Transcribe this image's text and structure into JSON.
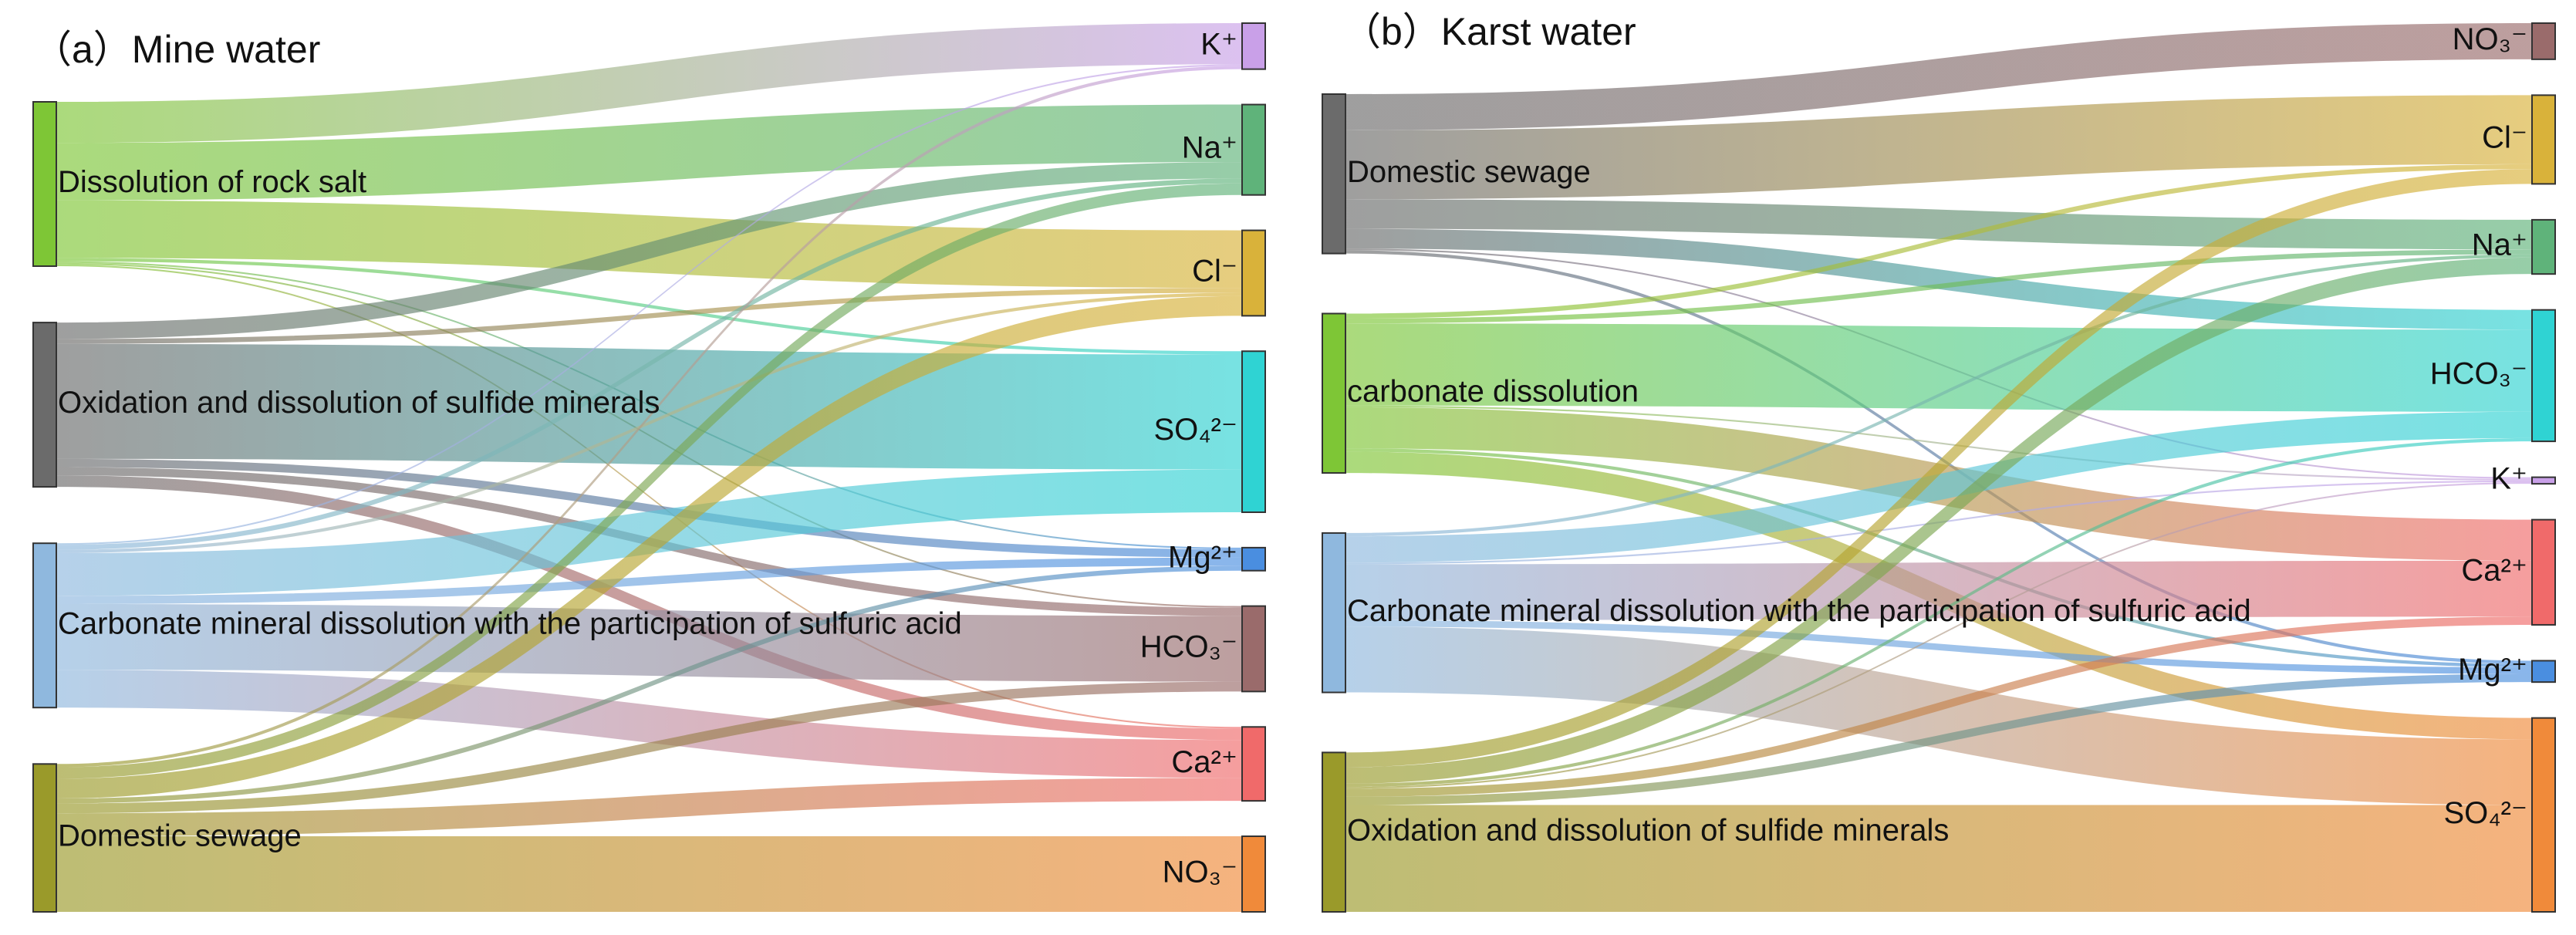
{
  "chart_data": [
    {
      "type": "sankey",
      "title": "（a）Mine water",
      "sources": [
        {
          "name": "Dissolution of rock salt",
          "color": "#7ec636"
        },
        {
          "name": "Oxidation and dissolution of sulfide minerals",
          "color": "#6b6b6b"
        },
        {
          "name": "Carbonate mineral dissolution with the participation of sulfuric acid",
          "color": "#8fb8de"
        },
        {
          "name": "Domestic sewage",
          "color": "#9a9a2a"
        }
      ],
      "targets": [
        {
          "name": "K⁺",
          "color": "#c9a0e8"
        },
        {
          "name": "Na⁺",
          "color": "#5fb37a"
        },
        {
          "name": "Cl⁻",
          "color": "#d9b23a"
        },
        {
          "name": "SO₄²⁻",
          "color": "#2fd3d3"
        },
        {
          "name": "Mg²⁺",
          "color": "#4a8ee0"
        },
        {
          "name": "HCO₃⁻",
          "color": "#9a6b6b"
        },
        {
          "name": "Ca²⁺",
          "color": "#f06a6a"
        },
        {
          "name": "NO₃⁻",
          "color": "#f08a3a"
        }
      ],
      "links": [
        {
          "source": "Dissolution of rock salt",
          "target": "K⁺",
          "value": 25
        },
        {
          "source": "Dissolution of rock salt",
          "target": "Na⁺",
          "value": 35
        },
        {
          "source": "Dissolution of rock salt",
          "target": "Cl⁻",
          "value": 35
        },
        {
          "source": "Dissolution of rock salt",
          "target": "SO₄²⁻",
          "value": 2
        },
        {
          "source": "Dissolution of rock salt",
          "target": "Mg²⁺",
          "value": 1
        },
        {
          "source": "Dissolution of rock salt",
          "target": "HCO₃⁻",
          "value": 1
        },
        {
          "source": "Dissolution of rock salt",
          "target": "Ca²⁺",
          "value": 1
        },
        {
          "source": "Oxidation and dissolution of sulfide minerals",
          "target": "Na⁺",
          "value": 10
        },
        {
          "source": "Oxidation and dissolution of sulfide minerals",
          "target": "Cl⁻",
          "value": 3
        },
        {
          "source": "Oxidation and dissolution of sulfide minerals",
          "target": "SO₄²⁻",
          "value": 70
        },
        {
          "source": "Oxidation and dissolution of sulfide minerals",
          "target": "Mg²⁺",
          "value": 5
        },
        {
          "source": "Oxidation and dissolution of sulfide minerals",
          "target": "HCO₃⁻",
          "value": 5
        },
        {
          "source": "Oxidation and dissolution of sulfide minerals",
          "target": "Ca²⁺",
          "value": 7
        },
        {
          "source": "Carbonate mineral dissolution with the participation of sulfuric acid",
          "target": "K⁺",
          "value": 1
        },
        {
          "source": "Carbonate mineral dissolution with the participation of sulfuric acid",
          "target": "Na⁺",
          "value": 3
        },
        {
          "source": "Carbonate mineral dissolution with the participation of sulfuric acid",
          "target": "Cl⁻",
          "value": 2
        },
        {
          "source": "Carbonate mineral dissolution with the participation of sulfuric acid",
          "target": "SO₄²⁻",
          "value": 26
        },
        {
          "source": "Carbonate mineral dissolution with the participation of sulfuric acid",
          "target": "Mg²⁺",
          "value": 5
        },
        {
          "source": "Carbonate mineral dissolution with the participation of sulfuric acid",
          "target": "HCO₃⁻",
          "value": 40
        },
        {
          "source": "Carbonate mineral dissolution with the participation of sulfuric acid",
          "target": "Ca²⁺",
          "value": 23
        },
        {
          "source": "Domestic sewage",
          "target": "K⁺",
          "value": 2
        },
        {
          "source": "Domestic sewage",
          "target": "Na⁺",
          "value": 7
        },
        {
          "source": "Domestic sewage",
          "target": "Cl⁻",
          "value": 12
        },
        {
          "source": "Domestic sewage",
          "target": "Mg²⁺",
          "value": 3
        },
        {
          "source": "Domestic sewage",
          "target": "HCO₃⁻",
          "value": 6
        },
        {
          "source": "Domestic sewage",
          "target": "Ca²⁺",
          "value": 14
        },
        {
          "source": "Domestic sewage",
          "target": "NO₃⁻",
          "value": 46
        }
      ]
    },
    {
      "type": "sankey",
      "title": "（b）Karst water",
      "sources": [
        {
          "name": "Domestic sewage",
          "color": "#6b6b6b"
        },
        {
          "name": "carbonate dissolution",
          "color": "#7ec636"
        },
        {
          "name": "Carbonate mineral dissolution with the participation of sulfuric acid",
          "color": "#8fb8de"
        },
        {
          "name": "Oxidation and dissolution of sulfide minerals",
          "color": "#9a9a2a"
        }
      ],
      "targets": [
        {
          "name": "NO₃⁻",
          "color": "#9a6b6b"
        },
        {
          "name": "Cl⁻",
          "color": "#d9b23a"
        },
        {
          "name": "Na⁺",
          "color": "#5fb37a"
        },
        {
          "name": "HCO₃⁻",
          "color": "#2fd3d3"
        },
        {
          "name": "K⁺",
          "color": "#c9a0e8"
        },
        {
          "name": "Ca²⁺",
          "color": "#f06a6a"
        },
        {
          "name": "Mg²⁺",
          "color": "#4a8ee0"
        },
        {
          "name": "SO₄²⁻",
          "color": "#f08a3a"
        }
      ],
      "links": [
        {
          "source": "Domestic sewage",
          "target": "NO₃⁻",
          "value": 22
        },
        {
          "source": "Domestic sewage",
          "target": "Cl⁻",
          "value": 42
        },
        {
          "source": "Domestic sewage",
          "target": "Na⁺",
          "value": 18
        },
        {
          "source": "Domestic sewage",
          "target": "HCO₃⁻",
          "value": 12
        },
        {
          "source": "Domestic sewage",
          "target": "K⁺",
          "value": 1
        },
        {
          "source": "Domestic sewage",
          "target": "Mg²⁺",
          "value": 2
        },
        {
          "source": "carbonate dissolution",
          "target": "Cl⁻",
          "value": 3
        },
        {
          "source": "carbonate dissolution",
          "target": "Na⁺",
          "value": 3
        },
        {
          "source": "carbonate dissolution",
          "target": "HCO₃⁻",
          "value": 50
        },
        {
          "source": "carbonate dissolution",
          "target": "K⁺",
          "value": 1
        },
        {
          "source": "carbonate dissolution",
          "target": "Ca²⁺",
          "value": 25
        },
        {
          "source": "carbonate dissolution",
          "target": "Mg²⁺",
          "value": 2
        },
        {
          "source": "carbonate dissolution",
          "target": "SO₄²⁻",
          "value": 13
        },
        {
          "source": "Carbonate mineral dissolution with the participation of sulfuric acid",
          "target": "Na⁺",
          "value": 2
        },
        {
          "source": "Carbonate mineral dissolution with the participation of sulfuric acid",
          "target": "HCO₃⁻",
          "value": 16
        },
        {
          "source": "Carbonate mineral dissolution with the participation of sulfuric acid",
          "target": "K⁺",
          "value": 1
        },
        {
          "source": "Carbonate mineral dissolution with the participation of sulfuric acid",
          "target": "Ca²⁺",
          "value": 34
        },
        {
          "source": "Carbonate mineral dissolution with the participation of sulfuric acid",
          "target": "Mg²⁺",
          "value": 4
        },
        {
          "source": "Carbonate mineral dissolution with the participation of sulfuric acid",
          "target": "SO₄²⁻",
          "value": 40
        },
        {
          "source": "Oxidation and dissolution of sulfide minerals",
          "target": "Cl⁻",
          "value": 9
        },
        {
          "source": "Oxidation and dissolution of sulfide minerals",
          "target": "Na⁺",
          "value": 10
        },
        {
          "source": "Oxidation and dissolution of sulfide minerals",
          "target": "HCO₃⁻",
          "value": 2
        },
        {
          "source": "Oxidation and dissolution of sulfide minerals",
          "target": "K⁺",
          "value": 1
        },
        {
          "source": "Oxidation and dissolution of sulfide minerals",
          "target": "Ca²⁺",
          "value": 5
        },
        {
          "source": "Oxidation and dissolution of sulfide minerals",
          "target": "Mg²⁺",
          "value": 5
        },
        {
          "source": "Oxidation and dissolution of sulfide minerals",
          "target": "SO₄²⁻",
          "value": 65
        }
      ]
    }
  ]
}
